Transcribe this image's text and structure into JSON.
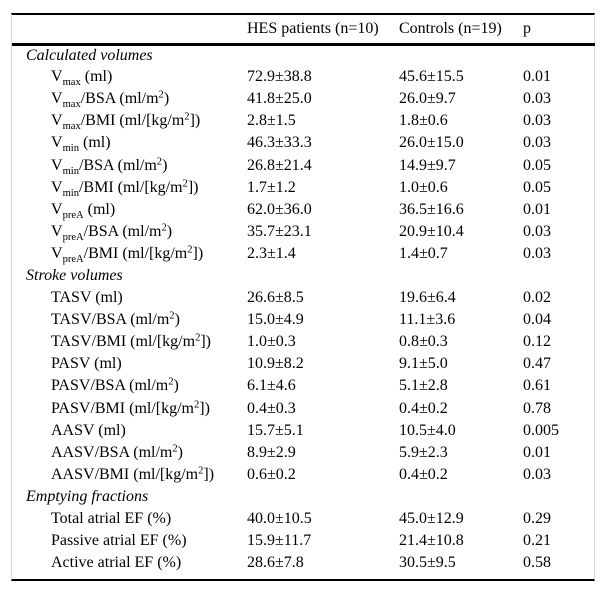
{
  "table": {
    "columns": [
      "",
      "HES patients (n=10)",
      "Controls (n=19)",
      "p"
    ],
    "sections": [
      {
        "title": "Calculated volumes",
        "rows": [
          {
            "label": "V_{max} (ml)",
            "hes": "72.9±38.8",
            "controls": "45.6±15.5",
            "p": "0.01"
          },
          {
            "label": "V_{max}/BSA (ml/m^{2})",
            "hes": "41.8±25.0",
            "controls": "26.0±9.7",
            "p": "0.03"
          },
          {
            "label": "V_{max}/BMI (ml/[kg/m^{2}])",
            "hes": "2.8±1.5",
            "controls": "1.8±0.6",
            "p": "0.03"
          },
          {
            "label": "V_{min} (ml)",
            "hes": "46.3±33.3",
            "controls": "26.0±15.0",
            "p": "0.03"
          },
          {
            "label": "V_{min}/BSA (ml/m^{2})",
            "hes": "26.8±21.4",
            "controls": "14.9±9.7",
            "p": "0.05"
          },
          {
            "label": "V_{min}/BMI (ml/[kg/m^{2}])",
            "hes": "1.7±1.2",
            "controls": "1.0±0.6",
            "p": "0.05"
          },
          {
            "label": "V_{preA} (ml)",
            "hes": "62.0±36.0",
            "controls": "36.5±16.6",
            "p": "0.01"
          },
          {
            "label": "V_{preA}/BSA (ml/m^{2})",
            "hes": "35.7±23.1",
            "controls": "20.9±10.4",
            "p": "0.03"
          },
          {
            "label": "V_{preA}/BMI (ml/[kg/m^{2}])",
            "hes": "2.3±1.4",
            "controls": "1.4±0.7",
            "p": "0.03"
          }
        ]
      },
      {
        "title": "Stroke volumes",
        "rows": [
          {
            "label": "TASV (ml)",
            "hes": "26.6±8.5",
            "controls": "19.6±6.4",
            "p": "0.02"
          },
          {
            "label": "TASV/BSA (ml/m^{2})",
            "hes": "15.0±4.9",
            "controls": "11.1±3.6",
            "p": "0.04"
          },
          {
            "label": "TASV/BMI (ml/[kg/m^{2}])",
            "hes": "1.0±0.3",
            "controls": "0.8±0.3",
            "p": "0.12"
          },
          {
            "label": "PASV (ml)",
            "hes": "10.9±8.2",
            "controls": "9.1±5.0",
            "p": "0.47"
          },
          {
            "label": "PASV/BSA (ml/m^{2})",
            "hes": "6.1±4.6",
            "controls": "5.1±2.8",
            "p": "0.61"
          },
          {
            "label": "PASV/BMI (ml/[kg/m^{2}])",
            "hes": "0.4±0.3",
            "controls": "0.4±0.2",
            "p": "0.78"
          },
          {
            "label": "AASV (ml)",
            "hes": "15.7±5.1",
            "controls": "10.5±4.0",
            "p": "0.005"
          },
          {
            "label": "AASV/BSA (ml/m^{2})",
            "hes": "8.9±2.9",
            "controls": "5.9±2.3",
            "p": "0.01"
          },
          {
            "label": "AASV/BMI (ml/[kg/m^{2}])",
            "hes": "0.6±0.2",
            "controls": "0.4±0.2",
            "p": "0.03"
          }
        ]
      },
      {
        "title": "Emptying fractions",
        "rows": [
          {
            "label": "Total atrial EF (%)",
            "hes": "40.0±10.5",
            "controls": "45.0±12.9",
            "p": "0.29"
          },
          {
            "label": "Passive atrial EF (%)",
            "hes": "15.9±11.7",
            "controls": "21.4±10.8",
            "p": "0.21"
          },
          {
            "label": "Active atrial EF (%)",
            "hes": "28.6±7.8",
            "controls": "30.5±9.5",
            "p": "0.58"
          }
        ]
      }
    ]
  }
}
